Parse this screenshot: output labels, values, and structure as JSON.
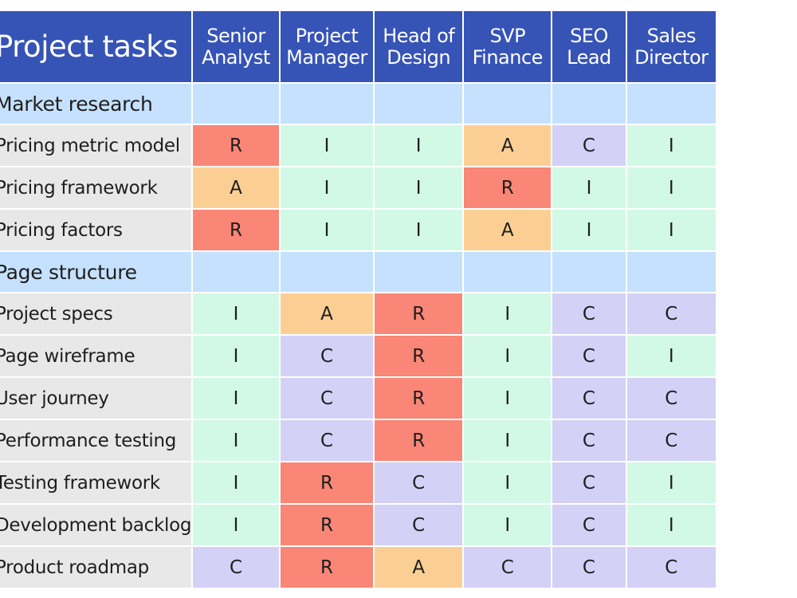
{
  "table": {
    "corner_label": "Project tasks",
    "roles": [
      {
        "line1": "Senior",
        "line2": "Analyst"
      },
      {
        "line1": "Project",
        "line2": "Manager"
      },
      {
        "line1": "Head of",
        "line2": "Design"
      },
      {
        "line1": "SVP",
        "line2": "Finance"
      },
      {
        "line1": "SEO",
        "line2": "Lead"
      },
      {
        "line1": "Sales",
        "line2": "Director"
      }
    ],
    "rows": [
      {
        "kind": "section",
        "label": "Market research"
      },
      {
        "kind": "task",
        "label": "Pricing metric model",
        "values": [
          "R",
          "I",
          "I",
          "A",
          "C",
          "I"
        ]
      },
      {
        "kind": "task",
        "label": "Pricing framework",
        "values": [
          "A",
          "I",
          "I",
          "R",
          "I",
          "I"
        ]
      },
      {
        "kind": "task",
        "label": "Pricing factors",
        "values": [
          "R",
          "I",
          "I",
          "A",
          "I",
          "I"
        ]
      },
      {
        "kind": "section",
        "label": "Page structure"
      },
      {
        "kind": "task",
        "label": "Project specs",
        "values": [
          "I",
          "A",
          "R",
          "I",
          "C",
          "C"
        ]
      },
      {
        "kind": "task",
        "label": "Page wireframe",
        "values": [
          "I",
          "C",
          "R",
          "I",
          "C",
          "I"
        ]
      },
      {
        "kind": "task",
        "label": "User journey",
        "values": [
          "I",
          "C",
          "R",
          "I",
          "C",
          "C"
        ]
      },
      {
        "kind": "task",
        "label": "Performance testing",
        "values": [
          "I",
          "C",
          "R",
          "I",
          "C",
          "C"
        ]
      },
      {
        "kind": "task",
        "label": "Testing framework",
        "values": [
          "I",
          "R",
          "C",
          "I",
          "C",
          "I"
        ]
      },
      {
        "kind": "task",
        "label": "Development backlog",
        "values": [
          "I",
          "R",
          "C",
          "I",
          "C",
          "I"
        ]
      },
      {
        "kind": "task",
        "label": "Product roadmap",
        "values": [
          "C",
          "R",
          "A",
          "C",
          "C",
          "C"
        ]
      }
    ]
  }
}
